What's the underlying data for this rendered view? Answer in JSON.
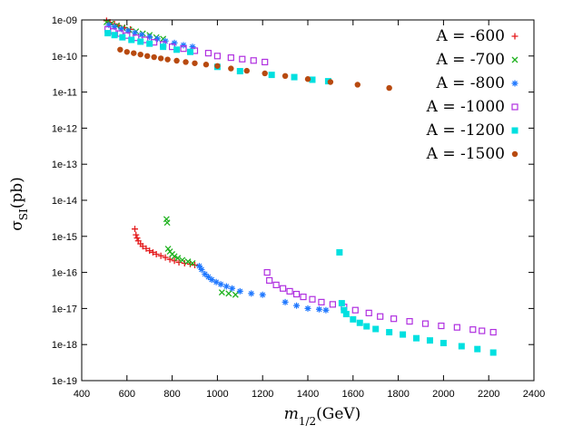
{
  "chart_data": {
    "type": "scatter",
    "title": "",
    "xlabel": {
      "main": "m",
      "sub": "1/2",
      "unit": "(GeV)"
    },
    "ylabel": {
      "main": "σ",
      "sub": "SI",
      "unit": "(pb)"
    },
    "xlim": [
      400,
      2400
    ],
    "ylim_log10": [
      -19,
      -9
    ],
    "x_ticks": [
      400,
      600,
      800,
      1000,
      1200,
      1400,
      1600,
      1800,
      2000,
      2200,
      2400
    ],
    "y_ticks": [
      {
        "exp": -9,
        "label": "1e-09"
      },
      {
        "exp": -10,
        "label": "1e-10"
      },
      {
        "exp": -11,
        "label": "1e-11"
      },
      {
        "exp": -12,
        "label": "1e-12"
      },
      {
        "exp": -13,
        "label": "1e-13"
      },
      {
        "exp": -14,
        "label": "1e-14"
      },
      {
        "exp": -15,
        "label": "1e-15"
      },
      {
        "exp": -16,
        "label": "1e-16"
      },
      {
        "exp": -17,
        "label": "1e-17"
      },
      {
        "exp": -18,
        "label": "1e-18"
      },
      {
        "exp": -19,
        "label": "1e-19"
      }
    ],
    "legend_position": "top-right",
    "series": [
      {
        "name": "A = -600",
        "marker": "plus",
        "color": "#e41a1c",
        "points": [
          [
            510,
            9.5e-10
          ],
          [
            525,
            8.6e-10
          ],
          [
            545,
            7.7e-10
          ],
          [
            565,
            6.9e-10
          ],
          [
            590,
            6.1e-10
          ],
          [
            615,
            5.5e-10
          ],
          [
            635,
            1.6e-15
          ],
          [
            640,
            1.1e-15
          ],
          [
            645,
            9e-16
          ],
          [
            650,
            7.5e-16
          ],
          [
            660,
            6.2e-16
          ],
          [
            670,
            5.3e-16
          ],
          [
            685,
            4.6e-16
          ],
          [
            700,
            4e-16
          ],
          [
            715,
            3.6e-16
          ],
          [
            730,
            3.2e-16
          ],
          [
            750,
            2.9e-16
          ],
          [
            770,
            2.6e-16
          ],
          [
            790,
            2.3e-16
          ],
          [
            810,
            2.1e-16
          ],
          [
            830,
            1.9e-16
          ],
          [
            855,
            1.8e-16
          ],
          [
            880,
            1.7e-16
          ],
          [
            900,
            1.6e-16
          ]
        ]
      },
      {
        "name": "A = -700",
        "marker": "cross",
        "color": "#1fb21f",
        "points": [
          [
            510,
            8.7e-10
          ],
          [
            530,
            7.8e-10
          ],
          [
            555,
            6.9e-10
          ],
          [
            580,
            6.1e-10
          ],
          [
            610,
            5.4e-10
          ],
          [
            640,
            4.8e-10
          ],
          [
            670,
            4.2e-10
          ],
          [
            700,
            3.8e-10
          ],
          [
            730,
            3.3e-10
          ],
          [
            760,
            3e-10
          ],
          [
            775,
            3e-15
          ],
          [
            778,
            2.4e-15
          ],
          [
            782,
            4.5e-16
          ],
          [
            790,
            3.8e-16
          ],
          [
            800,
            3.2e-16
          ],
          [
            810,
            2.8e-16
          ],
          [
            825,
            2.5e-16
          ],
          [
            845,
            2.2e-16
          ],
          [
            870,
            2e-16
          ],
          [
            890,
            1.8e-16
          ],
          [
            1020,
            2.8e-17
          ],
          [
            1050,
            2.6e-17
          ],
          [
            1080,
            2.4e-17
          ]
        ]
      },
      {
        "name": "A = -800",
        "marker": "star",
        "color": "#1f78ff",
        "points": [
          [
            520,
            7.2e-10
          ],
          [
            545,
            6.4e-10
          ],
          [
            575,
            5.6e-10
          ],
          [
            605,
            5e-10
          ],
          [
            635,
            4.4e-10
          ],
          [
            665,
            3.9e-10
          ],
          [
            700,
            3.4e-10
          ],
          [
            735,
            3e-10
          ],
          [
            770,
            2.6e-10
          ],
          [
            810,
            2.3e-10
          ],
          [
            850,
            2e-10
          ],
          [
            890,
            1.8e-10
          ],
          [
            920,
            1.5e-16
          ],
          [
            930,
            1.2e-16
          ],
          [
            945,
            9e-17
          ],
          [
            960,
            7.5e-17
          ],
          [
            975,
            6.3e-17
          ],
          [
            995,
            5.4e-17
          ],
          [
            1015,
            4.7e-17
          ],
          [
            1040,
            4.1e-17
          ],
          [
            1065,
            3.6e-17
          ],
          [
            1100,
            3e-17
          ],
          [
            1150,
            2.6e-17
          ],
          [
            1200,
            2.4e-17
          ],
          [
            1300,
            1.5e-17
          ],
          [
            1350,
            1.2e-17
          ],
          [
            1400,
            1e-17
          ],
          [
            1450,
            9.5e-18
          ],
          [
            1480,
            9e-18
          ]
        ]
      },
      {
        "name": "A = -1000",
        "marker": "square-open",
        "color": "#b030e0",
        "points": [
          [
            515,
            5.5e-10
          ],
          [
            540,
            4.8e-10
          ],
          [
            570,
            4.2e-10
          ],
          [
            600,
            3.7e-10
          ],
          [
            640,
            3.2e-10
          ],
          [
            680,
            2.8e-10
          ],
          [
            720,
            2.4e-10
          ],
          [
            760,
            2.1e-10
          ],
          [
            800,
            1.8e-10
          ],
          [
            850,
            1.6e-10
          ],
          [
            900,
            1.4e-10
          ],
          [
            960,
            1.2e-10
          ],
          [
            1000,
            1e-10
          ],
          [
            1060,
            9e-11
          ],
          [
            1110,
            8.2e-11
          ],
          [
            1160,
            7.5e-11
          ],
          [
            1210,
            6.8e-11
          ],
          [
            1220,
            1e-16
          ],
          [
            1230,
            6e-17
          ],
          [
            1260,
            4.5e-17
          ],
          [
            1290,
            3.6e-17
          ],
          [
            1320,
            3e-17
          ],
          [
            1350,
            2.5e-17
          ],
          [
            1380,
            2.1e-17
          ],
          [
            1420,
            1.8e-17
          ],
          [
            1460,
            1.5e-17
          ],
          [
            1510,
            1.3e-17
          ],
          [
            1560,
            1.1e-17
          ],
          [
            1610,
            9e-18
          ],
          [
            1670,
            7.5e-18
          ],
          [
            1720,
            6e-18
          ],
          [
            1780,
            5.2e-18
          ],
          [
            1850,
            4.4e-18
          ],
          [
            1920,
            3.8e-18
          ],
          [
            1990,
            3.3e-18
          ],
          [
            2060,
            3e-18
          ],
          [
            2130,
            2.6e-18
          ],
          [
            2170,
            2.4e-18
          ],
          [
            2220,
            2.2e-18
          ]
        ]
      },
      {
        "name": "A = -1200",
        "marker": "square-filled",
        "color": "#00e0e0",
        "points": [
          [
            515,
            4.3e-10
          ],
          [
            545,
            3.8e-10
          ],
          [
            580,
            3.3e-10
          ],
          [
            620,
            2.8e-10
          ],
          [
            660,
            2.5e-10
          ],
          [
            700,
            2.2e-10
          ],
          [
            760,
            1.8e-10
          ],
          [
            820,
            1.5e-10
          ],
          [
            880,
            1.3e-10
          ],
          [
            1000,
            5e-11
          ],
          [
            1100,
            3.8e-11
          ],
          [
            1240,
            3e-11
          ],
          [
            1340,
            2.6e-11
          ],
          [
            1420,
            2.2e-11
          ],
          [
            1490,
            2e-11
          ],
          [
            1540,
            3.6e-16
          ],
          [
            1550,
            1.4e-17
          ],
          [
            1560,
            9e-18
          ],
          [
            1570,
            7e-18
          ],
          [
            1600,
            5e-18
          ],
          [
            1630,
            4e-18
          ],
          [
            1660,
            3.2e-18
          ],
          [
            1700,
            2.7e-18
          ],
          [
            1760,
            2.2e-18
          ],
          [
            1820,
            1.9e-18
          ],
          [
            1880,
            1.5e-18
          ],
          [
            1940,
            1.3e-18
          ],
          [
            2000,
            1.1e-18
          ],
          [
            2080,
            9e-19
          ],
          [
            2150,
            7.5e-19
          ],
          [
            2220,
            6e-19
          ]
        ]
      },
      {
        "name": "A = -1500",
        "marker": "circle-filled",
        "color": "#b84a10",
        "points": [
          [
            570,
            1.5e-10
          ],
          [
            600,
            1.3e-10
          ],
          [
            630,
            1.2e-10
          ],
          [
            660,
            1.1e-10
          ],
          [
            690,
            1e-10
          ],
          [
            720,
            9.3e-11
          ],
          [
            750,
            8.6e-11
          ],
          [
            780,
            8e-11
          ],
          [
            820,
            7.4e-11
          ],
          [
            860,
            6.8e-11
          ],
          [
            900,
            6.3e-11
          ],
          [
            950,
            5.8e-11
          ],
          [
            1000,
            5.3e-11
          ],
          [
            1060,
            4.5e-11
          ],
          [
            1130,
            3.9e-11
          ],
          [
            1210,
            3.3e-11
          ],
          [
            1300,
            2.8e-11
          ],
          [
            1400,
            2.3e-11
          ],
          [
            1500,
            1.9e-11
          ],
          [
            1620,
            1.6e-11
          ],
          [
            1760,
            1.3e-11
          ]
        ]
      }
    ]
  }
}
